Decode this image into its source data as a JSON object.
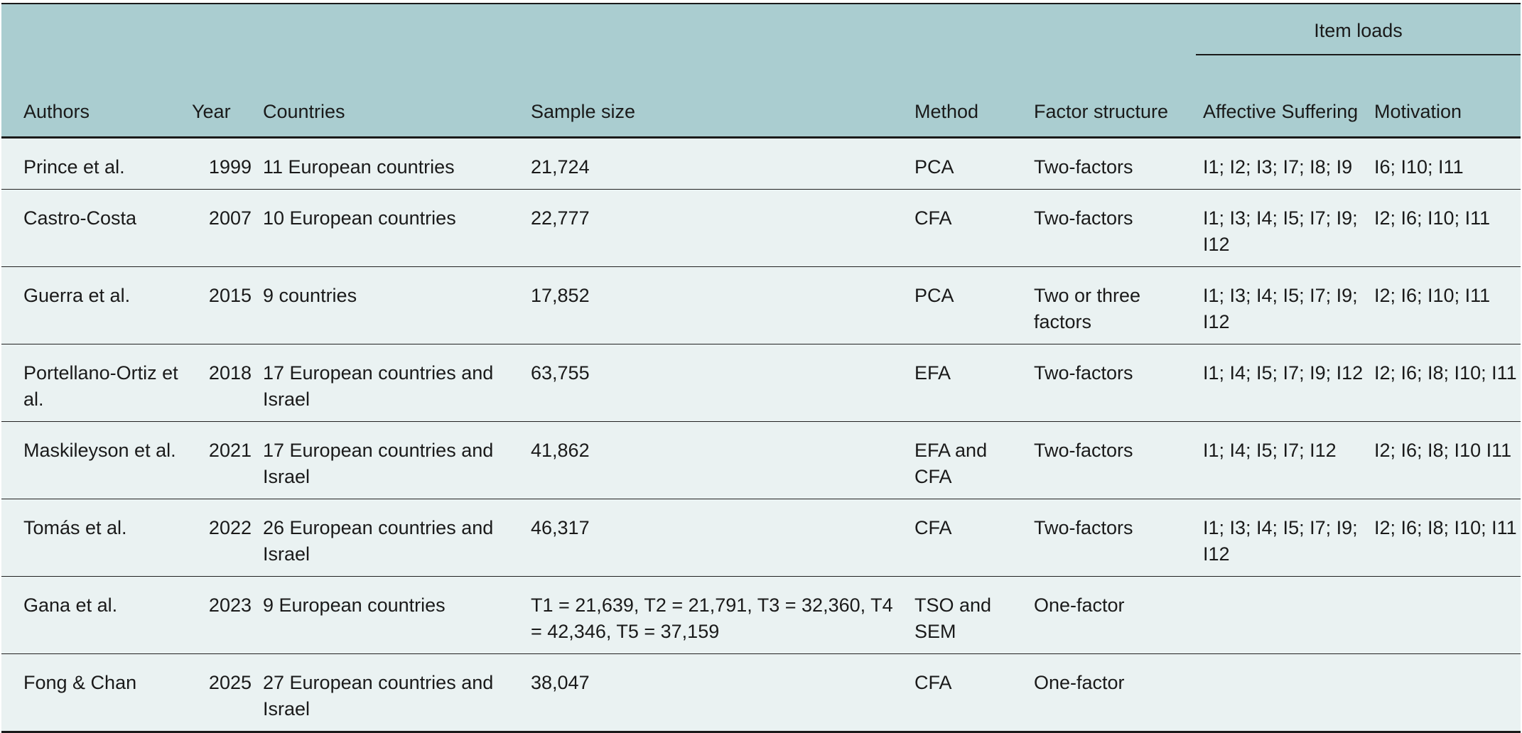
{
  "header": {
    "group_label": "Item loads",
    "columns": [
      "Authors",
      "Year",
      "Countries",
      "Sample size",
      "Method",
      "Factor structure",
      "Affective Suffering",
      "Motivation"
    ]
  },
  "rows": [
    {
      "authors": "Prince et al.",
      "year": "1999",
      "countries": "11 European countries",
      "sample": "21,724",
      "method": "PCA",
      "factor": "Two-factors",
      "affective": "I1; I2; I3; I7; I8; I9",
      "motivation": "I6; I10; I11"
    },
    {
      "authors": "Castro-Costa",
      "year": "2007",
      "countries": "10 European countries",
      "sample": "22,777",
      "method": "CFA",
      "factor": "Two-factors",
      "affective": "I1; I3; I4; I5; I7; I9; I12",
      "motivation": "I2; I6; I10; I11"
    },
    {
      "authors": "Guerra et al.",
      "year": "2015",
      "countries": "9 countries",
      "sample": "17,852",
      "method": "PCA",
      "factor": "Two or three factors",
      "affective": "I1; I3; I4; I5; I7; I9; I12",
      "motivation": "I2; I6; I10; I11"
    },
    {
      "authors": "Portellano-Ortiz et al.",
      "year": "2018",
      "countries": "17 European countries and Israel",
      "sample": "63,755",
      "method": "EFA",
      "factor": "Two-factors",
      "affective": "I1; I4; I5; I7; I9; I12",
      "motivation": "I2; I6; I8; I10; I11"
    },
    {
      "authors": "Maskileyson et al.",
      "year": "2021",
      "countries": "17 European countries and Israel",
      "sample": "41,862",
      "method": "EFA and CFA",
      "factor": "Two-factors",
      "affective": "I1; I4; I5; I7; I12",
      "motivation": "I2; I6; I8; I10 I11"
    },
    {
      "authors": "Tomás et al.",
      "year": "2022",
      "countries": "26 European countries and Israel",
      "sample": "46,317",
      "method": "CFA",
      "factor": "Two-factors",
      "affective": "I1; I3; I4; I5; I7; I9; I12",
      "motivation": "I2; I6; I8; I10; I11"
    },
    {
      "authors": "Gana et al.",
      "year": "2023",
      "countries": "9 European countries",
      "sample": "T1 = 21,639, T2 = 21,791, T3 = 32,360, T4 = 42,346, T5 = 37,159",
      "method": "TSO and SEM",
      "factor": "One-factor",
      "affective": "",
      "motivation": ""
    },
    {
      "authors": "Fong & Chan",
      "year": "2025",
      "countries": "27 European countries and Israel",
      "sample": "38,047",
      "method": "CFA",
      "factor": "One-factor",
      "affective": "",
      "motivation": ""
    }
  ]
}
